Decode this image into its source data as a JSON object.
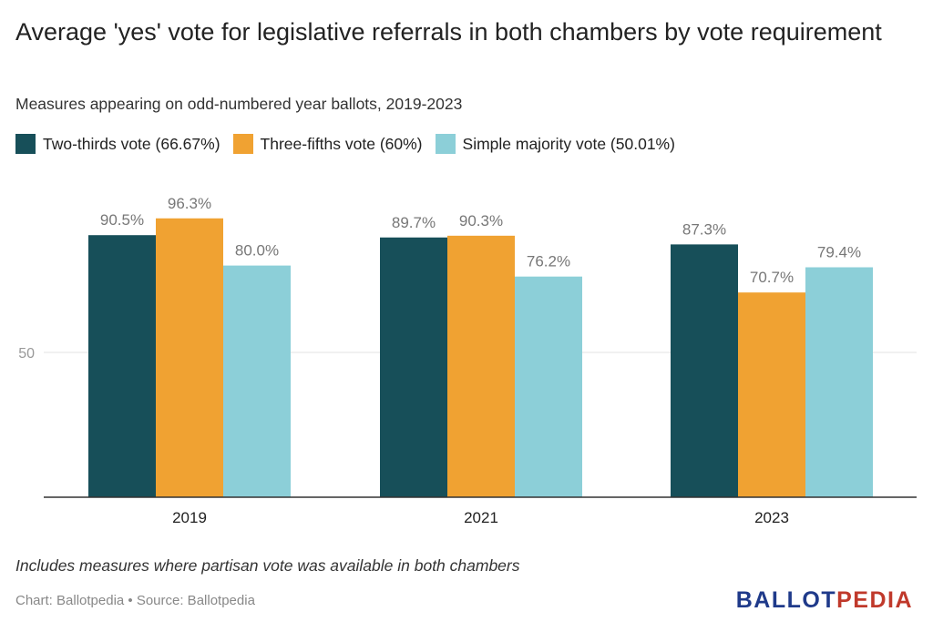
{
  "title": "Average 'yes' vote for legislative referrals in both chambers by vote requirement",
  "subtitle": "Measures appearing on odd-numbered year ballots, 2019-2023",
  "note": "Includes measures where partisan vote was available in both chambers",
  "credit": "Chart: Ballotpedia • Source: Ballotpedia",
  "logo": {
    "part1": "BALLOT",
    "part2": "PEDIA"
  },
  "colors": {
    "two_thirds": "#174f59",
    "three_fifths": "#f0a232",
    "simple_majority": "#8ccfd8"
  },
  "chart_data": {
    "type": "bar",
    "categories": [
      "2019",
      "2021",
      "2023"
    ],
    "series": [
      {
        "name": "Two-thirds vote (66.67%)",
        "values": [
          90.5,
          89.7,
          87.3
        ],
        "labels": [
          "90.5%",
          "89.7%",
          "87.3%"
        ]
      },
      {
        "name": "Three-fifths vote (60%)",
        "values": [
          96.3,
          90.3,
          70.7
        ],
        "labels": [
          "96.3%",
          "90.3%",
          "70.7%"
        ]
      },
      {
        "name": "Simple majority vote (50.01%)",
        "values": [
          80.0,
          76.2,
          79.4
        ],
        "labels": [
          "80.0%",
          "76.2%",
          "79.4%"
        ]
      }
    ],
    "yticks": [
      "50"
    ],
    "ylim": [
      0,
      100
    ],
    "grid": true,
    "legend": "top-left"
  }
}
